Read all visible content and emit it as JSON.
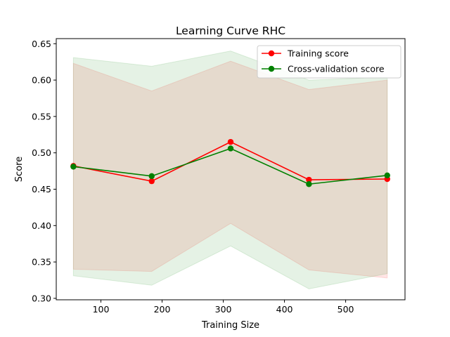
{
  "chart_data": {
    "type": "line",
    "title": "Learning Curve RHC",
    "xlabel": "Training Size",
    "ylabel": "Score",
    "xlim": [
      27,
      597
    ],
    "ylim": [
      0.298,
      0.657
    ],
    "x_ticks": [
      100,
      200,
      300,
      400,
      500
    ],
    "x_tick_labels": [
      "100",
      "200",
      "300",
      "400",
      "500"
    ],
    "y_ticks": [
      0.3,
      0.35,
      0.4,
      0.45,
      0.5,
      0.55,
      0.6,
      0.65
    ],
    "y_tick_labels": [
      "0.30",
      "0.35",
      "0.40",
      "0.45",
      "0.50",
      "0.55",
      "0.60",
      "0.65"
    ],
    "x": [
      55,
      183,
      312,
      440,
      568
    ],
    "series": [
      {
        "name": "Training score",
        "values": [
          0.482,
          0.461,
          0.515,
          0.463,
          0.464
        ],
        "band_lower": [
          0.34,
          0.337,
          0.403,
          0.339,
          0.328
        ],
        "band_upper": [
          0.623,
          0.585,
          0.626,
          0.587,
          0.6
        ],
        "color": "#ff0000",
        "band_color": "#ff0000"
      },
      {
        "name": "Cross-validation score",
        "values": [
          0.481,
          0.468,
          0.506,
          0.457,
          0.469
        ],
        "band_lower": [
          0.331,
          0.318,
          0.372,
          0.313,
          0.334
        ],
        "band_upper": [
          0.631,
          0.619,
          0.64,
          0.6,
          0.604
        ],
        "color": "#008000",
        "band_color": "#008000"
      }
    ],
    "legend_placement": "top-right",
    "grid": false
  }
}
